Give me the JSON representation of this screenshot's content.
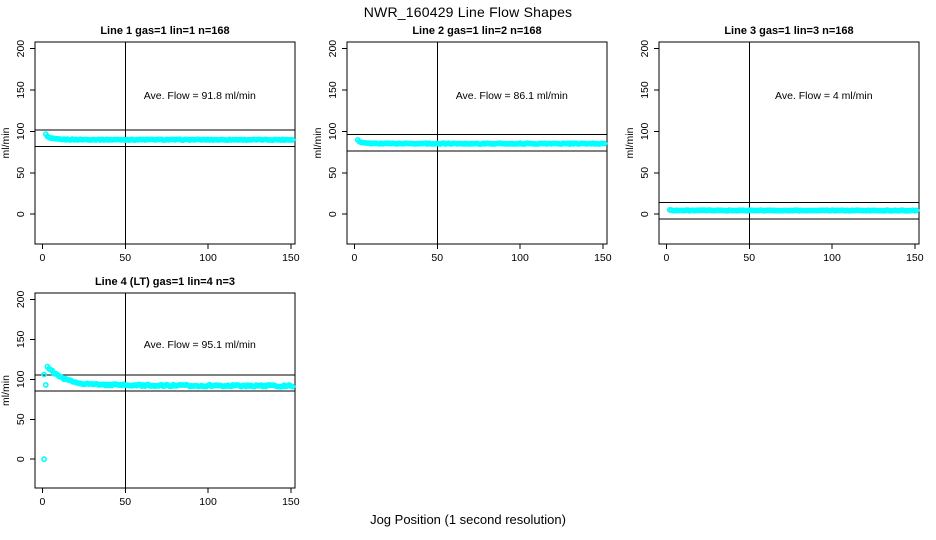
{
  "title": "NWR_160429  Line Flow Shapes",
  "xlabel_global": "Jog Position (1 second resolution)",
  "colors": {
    "points": "#00FFFF",
    "axis": "#000000",
    "background": "#FFFFFF"
  },
  "chart_data": [
    {
      "type": "scatter",
      "title": "Line 1 gas=1 lin=1 n=168",
      "annotation": "Ave. Flow =  91.8  ml/min",
      "ave_flow": 91.8,
      "ylabel": "ml/min",
      "x_ticks": [
        0,
        50,
        100,
        150
      ],
      "y_ticks": [
        0,
        50,
        100,
        150,
        200
      ],
      "xlim": [
        -4.5,
        152.5
      ],
      "ylim": [
        -36,
        208
      ],
      "vline_x": 50,
      "hlines": [
        101.8,
        81.8
      ],
      "annotation_pos": [
        95,
        143
      ],
      "x_range": [
        2,
        151
      ],
      "profile_keypoints": [
        [
          2,
          96.5
        ],
        [
          3,
          93.8
        ],
        [
          4,
          92.5
        ],
        [
          6,
          91.3
        ],
        [
          9,
          90.6
        ],
        [
          15,
          90.2
        ],
        [
          40,
          90.0
        ],
        [
          151,
          89.9
        ]
      ],
      "outliers": [],
      "jitter": 0.5,
      "grid": false
    },
    {
      "type": "scatter",
      "title": "Line 2 gas=1 lin=2 n=168",
      "annotation": "Ave. Flow =  86.1  ml/min",
      "ave_flow": 86.1,
      "ylabel": "ml/min",
      "x_ticks": [
        0,
        50,
        100,
        150
      ],
      "y_ticks": [
        0,
        50,
        100,
        150,
        200
      ],
      "xlim": [
        -4.5,
        152.5
      ],
      "ylim": [
        -36,
        208
      ],
      "vline_x": 50,
      "hlines": [
        96.1,
        76.1
      ],
      "annotation_pos": [
        95,
        143
      ],
      "x_range": [
        2,
        151
      ],
      "profile_keypoints": [
        [
          2,
          89.5
        ],
        [
          3,
          87.5
        ],
        [
          4,
          86.6
        ],
        [
          6,
          86.0
        ],
        [
          10,
          85.6
        ],
        [
          30,
          85.3
        ],
        [
          151,
          85.2
        ]
      ],
      "outliers": [],
      "jitter": 0.5,
      "grid": false
    },
    {
      "type": "scatter",
      "title": "Line 3 gas=1 lin=3 n=168",
      "annotation": "Ave. Flow =  4  ml/min",
      "ave_flow": 4,
      "ylabel": "ml/min",
      "x_ticks": [
        0,
        50,
        100,
        150
      ],
      "y_ticks": [
        0,
        50,
        100,
        150,
        200
      ],
      "xlim": [
        -4.5,
        152.5
      ],
      "ylim": [
        -36,
        208
      ],
      "vline_x": 50,
      "hlines": [
        14,
        -6
      ],
      "annotation_pos": [
        95,
        143
      ],
      "x_range": [
        2,
        151
      ],
      "profile_keypoints": [
        [
          2,
          5.0
        ],
        [
          4,
          4.7
        ],
        [
          10,
          4.5
        ],
        [
          151,
          4.4
        ]
      ],
      "outliers": [],
      "jitter": 0.4,
      "grid": false
    },
    {
      "type": "scatter",
      "title": "Line 4 (LT) gas=1 lin=4 n=3",
      "annotation": "Ave. Flow =  95.1  ml/min",
      "ave_flow": 95.1,
      "ylabel": "ml/min",
      "x_ticks": [
        0,
        50,
        100,
        150
      ],
      "y_ticks": [
        0,
        50,
        100,
        150,
        200
      ],
      "xlim": [
        -4.5,
        152.5
      ],
      "ylim": [
        -36,
        208
      ],
      "vline_x": 50,
      "hlines": [
        105.1,
        85.1
      ],
      "annotation_pos": [
        95,
        143
      ],
      "x_range": [
        3,
        151
      ],
      "profile_keypoints": [
        [
          3,
          116
        ],
        [
          4,
          113.5
        ],
        [
          5,
          111.5
        ],
        [
          7,
          108
        ],
        [
          9,
          105
        ],
        [
          12,
          101.5
        ],
        [
          15,
          99
        ],
        [
          19,
          96.8
        ],
        [
          24,
          95
        ],
        [
          30,
          93.8
        ],
        [
          40,
          93
        ],
        [
          55,
          92.5
        ],
        [
          80,
          92.2
        ],
        [
          120,
          92
        ],
        [
          151,
          91.8
        ]
      ],
      "outliers": [
        [
          1,
          106
        ],
        [
          2,
          93
        ],
        [
          1,
          0
        ]
      ],
      "jitter": 1.1,
      "grid": false
    }
  ]
}
